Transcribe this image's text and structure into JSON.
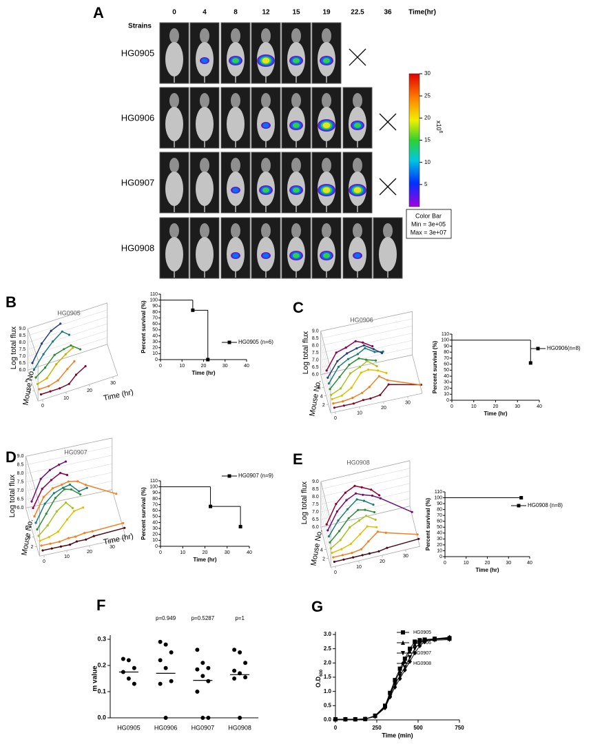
{
  "panel_a": {
    "label": "A",
    "time_label": "Time(hr)",
    "times": [
      0,
      4,
      8,
      12,
      15,
      19,
      22.5,
      36
    ],
    "strains_label": "Strains",
    "strains": [
      "HG0905",
      "HG0906",
      "HG0907",
      "HG0908"
    ],
    "colorbar": {
      "ylim": [
        0,
        30
      ],
      "yticks": [
        5,
        10,
        15,
        20,
        25,
        30
      ],
      "scale_label": "x10",
      "scale_exp": "6",
      "title": "Color Bar",
      "min_label": "Min = 3e+05",
      "max_label": "Max = 3e+07"
    }
  },
  "chart_data": [
    {
      "type": "line3d",
      "label": "B",
      "title": "HG0905",
      "zlabel": "Log total flux",
      "ylabel": "Mouse No.",
      "xlabel": "Time (hr)",
      "x": [
        0,
        4,
        8,
        12,
        15,
        19
      ],
      "xlim": [
        -2,
        32
      ],
      "xticks": [
        0,
        10,
        20,
        30
      ],
      "ylim": [
        0,
        6
      ],
      "yticks": [
        2,
        4
      ],
      "zlim": [
        6,
        9
      ],
      "zticks": [
        {
          "value": 6,
          "label": "6.0"
        },
        6.5,
        {
          "value": 7,
          "label": "7.0"
        },
        7.5,
        {
          "value": 8,
          "label": "8.0"
        },
        8.5,
        {
          "value": 9,
          "label": "9.0"
        }
      ],
      "series": [
        {
          "color": "#7a0a2a",
          "values": [
            6.0,
            6.0,
            6.0,
            6.1,
            6.6,
            7.0
          ]
        },
        {
          "color": "#f08020",
          "values": [
            6.0,
            6.0,
            6.2,
            6.8,
            7.2,
            null
          ]
        },
        {
          "color": "#c8b400",
          "values": [
            6.0,
            6.2,
            7.0,
            7.5,
            7.8,
            null
          ]
        },
        {
          "color": "#2e8b3a",
          "values": [
            6.1,
            6.6,
            7.3,
            7.5,
            7.6,
            7.1
          ]
        },
        {
          "color": "#1b7b7b",
          "values": [
            6.3,
            7.2,
            7.9,
            8.4,
            8.0,
            null
          ]
        },
        {
          "color": "#1f3d7a",
          "values": [
            6.4,
            7.6,
            8.3,
            8.6,
            null,
            null
          ]
        }
      ]
    },
    {
      "type": "step",
      "ylabel": "Percent survival (%)",
      "xlabel": "Time (hr)",
      "xlim": [
        0,
        40
      ],
      "xticks": [
        0,
        10,
        20,
        30,
        40
      ],
      "ylim": [
        0,
        110
      ],
      "yticks": [
        0,
        10,
        20,
        30,
        40,
        50,
        60,
        70,
        80,
        90,
        100,
        110
      ],
      "series": [
        {
          "name": "HG0905 (n=6)",
          "color": "#000000",
          "x": [
            0,
            15,
            22
          ],
          "values": [
            100,
            83,
            0
          ]
        }
      ]
    },
    {
      "type": "line3d",
      "label": "C",
      "title": "HG0906",
      "zlabel": "Log total flux",
      "ylabel": "Mouse No.",
      "x": [
        0,
        4,
        8,
        12,
        15,
        19,
        22.5,
        36
      ],
      "xlim": [
        -2,
        36
      ],
      "xticks": [
        0,
        10,
        20,
        30
      ],
      "ylim": [
        0,
        9
      ],
      "yticks": [
        2,
        4,
        6
      ],
      "zlim": [
        6,
        9
      ],
      "zticks": [
        {
          "value": 6,
          "label": "6.0"
        },
        6.5,
        {
          "value": 7,
          "label": "7.0"
        },
        7.5,
        {
          "value": 8,
          "label": "8.0"
        },
        8.5,
        {
          "value": 9,
          "label": "9.0"
        }
      ],
      "series": [
        {
          "color": "#7a0a2a",
          "values": [
            6.0,
            6.0,
            6.0,
            6.1,
            6.1,
            6.2,
            6.8,
            6.3
          ]
        },
        {
          "color": "#f08020",
          "values": [
            6.0,
            6.0,
            6.1,
            6.3,
            6.6,
            7.2,
            6.8,
            6.0
          ]
        },
        {
          "color": "#e0c000",
          "values": [
            6.0,
            6.1,
            6.5,
            7.4,
            7.5,
            7.3,
            7.0,
            null
          ]
        },
        {
          "color": "#a8c020",
          "values": [
            6.0,
            6.3,
            7.2,
            7.5,
            7.8,
            7.3,
            null,
            null
          ]
        },
        {
          "color": "#2e8b3a",
          "values": [
            6.1,
            6.8,
            7.5,
            7.8,
            7.6,
            7.4,
            null,
            null
          ]
        },
        {
          "color": "#1b7b7b",
          "values": [
            6.2,
            7.2,
            7.6,
            7.8,
            8.1,
            7.7,
            7.6,
            null
          ]
        },
        {
          "color": "#1f3d7a",
          "values": [
            6.3,
            7.3,
            7.7,
            7.9,
            8.0,
            7.6,
            7.2,
            null
          ]
        },
        {
          "color": "#8b0050",
          "values": [
            6.5,
            7.6,
            7.8,
            8.1,
            7.9,
            7.5,
            null,
            null
          ]
        }
      ]
    },
    {
      "type": "step",
      "ylabel": "Percent survival (%)",
      "xlabel": "Time (hr)",
      "xlim": [
        0,
        40
      ],
      "xticks": [
        0,
        10,
        20,
        30,
        40
      ],
      "ylim": [
        0,
        110
      ],
      "yticks": [
        0,
        10,
        20,
        30,
        40,
        50,
        60,
        70,
        80,
        90,
        100,
        110
      ],
      "series": [
        {
          "name": "HG0906(n=8)",
          "color": "#000000",
          "x": [
            0,
            36
          ],
          "values": [
            100,
            62
          ]
        }
      ]
    },
    {
      "type": "line3d",
      "label": "D",
      "title": "HG0907",
      "zlabel": "Log total flux",
      "ylabel": "Mouse No.",
      "xlabel": "Time (hr)",
      "x": [
        0,
        4,
        8,
        12,
        15,
        19,
        22.5,
        36
      ],
      "xlim": [
        -2,
        36
      ],
      "xticks": [
        0,
        10,
        20,
        30
      ],
      "ylim": [
        0,
        10
      ],
      "yticks": [
        2,
        4,
        6
      ],
      "zlim": [
        6,
        9
      ],
      "zticks": [
        {
          "value": 6,
          "label": "6.0"
        },
        6.5,
        {
          "value": 7,
          "label": "7.0"
        },
        7.5,
        {
          "value": 8,
          "label": "8.0"
        },
        8.5,
        {
          "value": 9,
          "label": "9.0"
        }
      ],
      "series": [
        {
          "color": "#4a0a1a",
          "values": [
            6.0,
            6.0,
            6.0,
            6.0,
            6.1,
            6.1,
            6.2,
            6.3
          ]
        },
        {
          "color": "#f08020",
          "values": [
            6.0,
            6.0,
            6.0,
            6.1,
            6.1,
            6.2,
            6.2,
            6.3
          ]
        },
        {
          "color": "#e0c000",
          "values": [
            6.0,
            6.1,
            6.3,
            6.9,
            7.3,
            7.4,
            null,
            null
          ]
        },
        {
          "color": "#a8c020",
          "values": [
            6.0,
            6.5,
            7.2,
            7.6,
            7.2,
            null,
            null,
            null
          ]
        },
        {
          "color": "#2e8b3a",
          "values": [
            6.1,
            6.9,
            7.7,
            8.1,
            8.0,
            7.6,
            null,
            null
          ]
        },
        {
          "color": "#1b7b7b",
          "values": [
            6.2,
            7.2,
            7.7,
            7.9,
            8.0,
            7.5,
            7.6,
            null
          ]
        },
        {
          "color": "#f08020",
          "values": [
            6.3,
            7.3,
            7.7,
            7.8,
            7.9,
            7.8,
            7.5,
            6.6
          ]
        },
        {
          "color": "#8b0050",
          "values": [
            6.5,
            7.5,
            7.9,
            8.2,
            8.0,
            null,
            null,
            null
          ]
        },
        {
          "color": "#6a1070",
          "values": [
            6.6,
            7.8,
            8.2,
            8.4,
            8.5,
            null,
            null,
            null
          ]
        }
      ]
    },
    {
      "type": "step",
      "ylabel": "Percent survival (%)",
      "xlabel": "Time (hr)",
      "xlim": [
        0,
        40
      ],
      "xticks": [
        0,
        10,
        20,
        30,
        40
      ],
      "ylim": [
        0,
        110
      ],
      "yticks": [
        0,
        10,
        20,
        30,
        40,
        50,
        60,
        70,
        80,
        90,
        100,
        110
      ],
      "series": [
        {
          "name": "HG0907 (n=9)",
          "color": "#000000",
          "x": [
            0,
            22.5,
            36
          ],
          "values": [
            100,
            67,
            33
          ]
        }
      ]
    },
    {
      "type": "line3d",
      "label": "E",
      "title": "HG0908",
      "zlabel": "Log total flux",
      "ylabel": "Mouse No.",
      "x": [
        0,
        4,
        8,
        12,
        15,
        19,
        22.5,
        36
      ],
      "xlim": [
        -2,
        36
      ],
      "xticks": [
        0,
        10,
        20,
        30
      ],
      "ylim": [
        0,
        9
      ],
      "yticks": [
        2,
        4
      ],
      "zlim": [
        6,
        9
      ],
      "zticks": [
        {
          "value": 6,
          "label": "6.0"
        },
        6.5,
        {
          "value": 7,
          "label": "7.0"
        },
        7.5,
        {
          "value": 8,
          "label": "8.0"
        },
        8.5,
        {
          "value": 9,
          "label": "9.0"
        }
      ],
      "series": [
        {
          "color": "#4a0a1a",
          "values": [
            6.0,
            6.0,
            6.0,
            6.0,
            6.0,
            6.0,
            6.1,
            6.2
          ]
        },
        {
          "color": "#f08020",
          "values": [
            6.0,
            6.0,
            6.0,
            6.1,
            6.5,
            7.0,
            6.8,
            6.2
          ]
        },
        {
          "color": "#e0c000",
          "values": [
            6.0,
            6.1,
            6.3,
            6.8,
            7.2,
            7.0,
            null,
            null
          ]
        },
        {
          "color": "#a8c020",
          "values": [
            6.0,
            6.4,
            7.1,
            7.4,
            7.6,
            7.2,
            null,
            null
          ]
        },
        {
          "color": "#2e8b3a",
          "values": [
            6.1,
            6.7,
            7.4,
            7.8,
            7.7,
            7.4,
            null,
            null
          ]
        },
        {
          "color": "#1b7b7b",
          "values": [
            6.2,
            7.1,
            7.7,
            8.2,
            8.0,
            7.6,
            null,
            null
          ]
        },
        {
          "color": "#6a1070",
          "values": [
            6.3,
            7.4,
            8.0,
            8.3,
            8.1,
            7.9,
            7.6,
            6.2
          ]
        },
        {
          "color": "#8b0030",
          "values": [
            6.4,
            7.6,
            8.2,
            8.5,
            8.3,
            8.0,
            7.5,
            null
          ]
        }
      ]
    },
    {
      "type": "step",
      "ylabel": "Percent survival (%)",
      "xlabel": "Time (hr)",
      "xlim": [
        0,
        40
      ],
      "xticks": [
        0,
        10,
        20,
        30,
        40
      ],
      "ylim": [
        0,
        110
      ],
      "yticks": [
        0,
        10,
        20,
        30,
        40,
        50,
        60,
        70,
        80,
        90,
        100,
        110
      ],
      "series": [
        {
          "name": "HG0908 (n=8)",
          "color": "#000000",
          "x": [
            0,
            36
          ],
          "values": [
            100,
            100
          ]
        }
      ]
    },
    {
      "type": "dot",
      "label": "F",
      "ylabel": "m value",
      "categories": [
        "HG0905",
        "HG0906",
        "HG0907",
        "HG0908"
      ],
      "values": [
        [
          0.225,
          0.22,
          0.19,
          0.175,
          0.15,
          0.13
        ],
        [
          0.29,
          0.28,
          0.25,
          0.22,
          0.19,
          0.14,
          0.13,
          0.0
        ],
        [
          0.26,
          0.21,
          0.19,
          0.185,
          0.16,
          0.14,
          0.1,
          0.0,
          0.0
        ],
        [
          0.26,
          0.25,
          0.21,
          0.18,
          0.17,
          0.155,
          0.15,
          0.0
        ]
      ],
      "medians": [
        0.175,
        0.17,
        0.143,
        0.165
      ],
      "color": "#000000",
      "ylim": [
        0,
        0.3
      ],
      "yticks": [
        {
          "value": 0,
          "label": "0.0"
        },
        0.1,
        0.2,
        0.3
      ],
      "annotations": [
        {
          "x": "HG0906",
          "text": "p=0.949"
        },
        {
          "x": "HG0907",
          "text": "p=0.5287"
        },
        {
          "x": "HG0908",
          "text": "p=1"
        }
      ]
    },
    {
      "type": "line",
      "label": "G",
      "xlabel": "Time (min)",
      "ylabel": "O.D",
      "ylabel_sub": "600",
      "x": [
        0,
        60,
        120,
        180,
        240,
        300,
        330,
        360,
        390,
        420,
        450,
        480,
        510,
        540,
        600,
        690
      ],
      "xlim": [
        0,
        750
      ],
      "xticks": [
        0,
        250,
        500,
        750
      ],
      "ylim": [
        0,
        3
      ],
      "yticks": [
        {
          "value": 0,
          "label": "0.0"
        },
        0.5,
        {
          "value": 1,
          "label": "1.0"
        },
        1.5,
        {
          "value": 2,
          "label": "2.0"
        },
        2.5,
        {
          "value": 3,
          "label": "3.0"
        }
      ],
      "series": [
        {
          "name": "HG0905",
          "color": "#000000",
          "marker": "square",
          "values": [
            0.02,
            0.02,
            0.02,
            0.03,
            0.15,
            0.5,
            0.95,
            1.4,
            1.8,
            2.15,
            2.5,
            2.75,
            2.8,
            2.82,
            2.85,
            2.87
          ]
        },
        {
          "name": "HG0906",
          "color": "#000000",
          "marker": "triangle",
          "values": [
            0.02,
            0.02,
            0.02,
            0.03,
            0.14,
            0.48,
            0.9,
            1.35,
            1.7,
            2.05,
            2.4,
            2.65,
            2.75,
            2.8,
            2.83,
            2.85
          ]
        },
        {
          "name": "HG0907",
          "color": "#000000",
          "marker": "triangle-down",
          "values": [
            0.02,
            0.02,
            0.02,
            0.03,
            0.13,
            0.45,
            0.85,
            1.25,
            1.55,
            1.85,
            2.2,
            2.5,
            2.7,
            2.78,
            2.8,
            2.82
          ]
        },
        {
          "name": "HG0908",
          "color": "#000000",
          "marker": "diamond",
          "values": [
            0.02,
            0.02,
            0.02,
            0.03,
            0.12,
            0.42,
            0.8,
            1.15,
            1.45,
            1.75,
            2.05,
            2.35,
            2.6,
            2.75,
            2.85,
            2.9
          ]
        }
      ]
    }
  ]
}
